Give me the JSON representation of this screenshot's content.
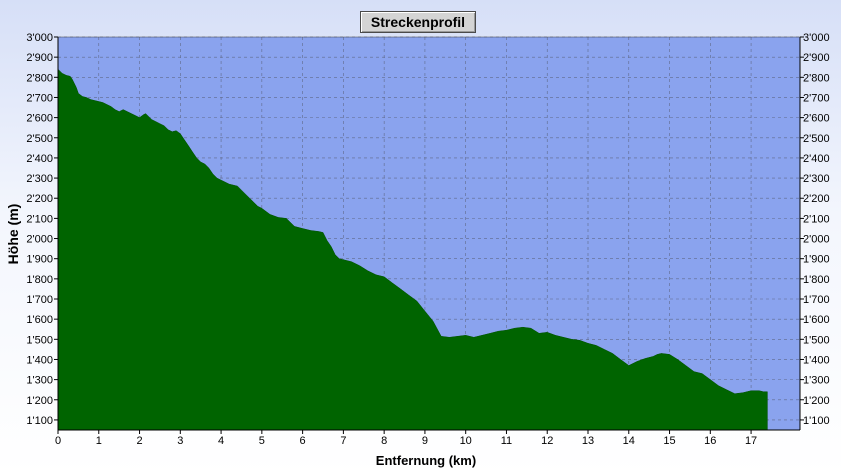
{
  "chart_data": {
    "type": "area",
    "title": "Streckenprofil",
    "xlabel": "Entfernung (km)",
    "ylabel": "Höhe (m)",
    "xlim": [
      0,
      18.2
    ],
    "ylim": [
      1050,
      3000
    ],
    "x_ticks": [
      "0",
      "1",
      "2",
      "3",
      "4",
      "5",
      "6",
      "7",
      "8",
      "9",
      "10",
      "11",
      "12",
      "13",
      "14",
      "15",
      "16",
      "17"
    ],
    "y_ticks": [
      "1'100",
      "1'200",
      "1'300",
      "1'400",
      "1'500",
      "1'600",
      "1'700",
      "1'800",
      "1'900",
      "2'000",
      "2'100",
      "2'200",
      "2'300",
      "2'400",
      "2'500",
      "2'600",
      "2'700",
      "2'800",
      "2'900",
      "3'000"
    ],
    "grid": true,
    "legend": "none",
    "colors": {
      "fill": "#006400",
      "plot_bg": "#8aa3ee",
      "grid": "#5f6a8a"
    },
    "series": [
      {
        "x": [
          0,
          0.1,
          0.2,
          0.3,
          0.35,
          0.45,
          0.5,
          0.6,
          0.7,
          0.8,
          0.9,
          1.0,
          1.1,
          1.2,
          1.3,
          1.4,
          1.5,
          1.6,
          1.7,
          1.8,
          1.9,
          2.0,
          2.1,
          2.15,
          2.2,
          2.3,
          2.4,
          2.5,
          2.6,
          2.7,
          2.8,
          2.9,
          3.0,
          3.1,
          3.2,
          3.3,
          3.4,
          3.5,
          3.6,
          3.7,
          3.8,
          3.9,
          4.0,
          4.2,
          4.4,
          4.5,
          4.6,
          4.7,
          4.8,
          4.9,
          5.0,
          5.2,
          5.4,
          5.6,
          5.8,
          6.0,
          6.2,
          6.4,
          6.5,
          6.6,
          6.7,
          6.8,
          6.9,
          7.0,
          7.2,
          7.4,
          7.6,
          7.8,
          8.0,
          8.2,
          8.4,
          8.6,
          8.8,
          9.0,
          9.2,
          9.4,
          9.6,
          9.8,
          10.0,
          10.2,
          10.4,
          10.6,
          10.8,
          11.0,
          11.2,
          11.4,
          11.6,
          11.8,
          12.0,
          12.2,
          12.4,
          12.6,
          12.8,
          13.0,
          13.2,
          13.4,
          13.6,
          13.8,
          14.0,
          14.2,
          14.4,
          14.6,
          14.7,
          14.8,
          15.0,
          15.2,
          15.4,
          15.6,
          15.8,
          16.0,
          16.2,
          16.4,
          16.6,
          16.8,
          17.0,
          17.2,
          17.3,
          17.4
        ],
        "y": [
          2840,
          2820,
          2810,
          2805,
          2790,
          2750,
          2720,
          2705,
          2700,
          2690,
          2685,
          2680,
          2675,
          2665,
          2655,
          2640,
          2630,
          2640,
          2630,
          2620,
          2610,
          2600,
          2615,
          2620,
          2610,
          2590,
          2580,
          2570,
          2560,
          2540,
          2530,
          2535,
          2520,
          2490,
          2460,
          2430,
          2400,
          2380,
          2370,
          2350,
          2320,
          2300,
          2290,
          2270,
          2260,
          2240,
          2220,
          2200,
          2180,
          2160,
          2150,
          2120,
          2105,
          2100,
          2060,
          2050,
          2040,
          2035,
          2030,
          1990,
          1960,
          1920,
          1900,
          1895,
          1885,
          1865,
          1840,
          1820,
          1810,
          1780,
          1750,
          1720,
          1690,
          1640,
          1590,
          1515,
          1510,
          1515,
          1520,
          1510,
          1520,
          1530,
          1540,
          1545,
          1555,
          1560,
          1555,
          1530,
          1535,
          1520,
          1510,
          1500,
          1495,
          1480,
          1470,
          1450,
          1430,
          1400,
          1370,
          1390,
          1405,
          1415,
          1425,
          1430,
          1425,
          1400,
          1370,
          1340,
          1330,
          1300,
          1270,
          1250,
          1230,
          1235,
          1245,
          1245,
          1240,
          1240
        ]
      }
    ]
  }
}
